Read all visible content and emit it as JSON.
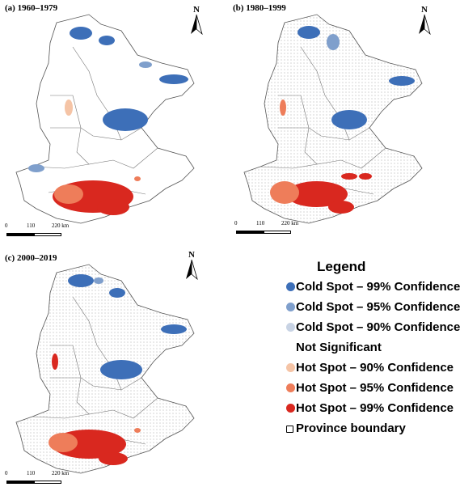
{
  "panels": [
    {
      "label": "(a) 1960–1979",
      "north": "N",
      "scale": {
        "ticks": [
          "0",
          "110",
          "220 km"
        ]
      }
    },
    {
      "label": "(b) 1980–1999",
      "north": "N",
      "scale": {
        "ticks": [
          "0",
          "110",
          "220 km"
        ]
      }
    },
    {
      "label": "(c) 2000–2019",
      "north": "N",
      "scale": {
        "ticks": [
          "0",
          "110",
          "220 km"
        ]
      }
    }
  ],
  "legend": {
    "title": "Legend",
    "items": [
      {
        "label": "Cold Spot – 99% Confidence",
        "color": "#3d6fb8",
        "symbol": "dot"
      },
      {
        "label": "Cold Spot – 95% Confidence",
        "color": "#7f9fcc",
        "symbol": "dot"
      },
      {
        "label": "Cold Spot – 90% Confidence",
        "color": "#c8d3e4",
        "symbol": "dot"
      },
      {
        "label": "Not Significant",
        "color": "#ffffff",
        "symbol": "none"
      },
      {
        "label": "Hot Spot – 90% Confidence",
        "color": "#f5c4a6",
        "symbol": "dot"
      },
      {
        "label": "Hot Spot – 95% Confidence",
        "color": "#ee7d5a",
        "symbol": "dot"
      },
      {
        "label": "Hot Spot – 99% Confidence",
        "color": "#d9281f",
        "symbol": "dot"
      },
      {
        "label": "Province boundary",
        "color": "#000000",
        "symbol": "box"
      }
    ]
  },
  "colors": {
    "cold99": "#3d6fb8",
    "cold95": "#7f9fcc",
    "cold90": "#c8d3e4",
    "hot90": "#f5c4a6",
    "hot95": "#ee7d5a",
    "hot99": "#d9281f",
    "boundary": "#555555"
  }
}
